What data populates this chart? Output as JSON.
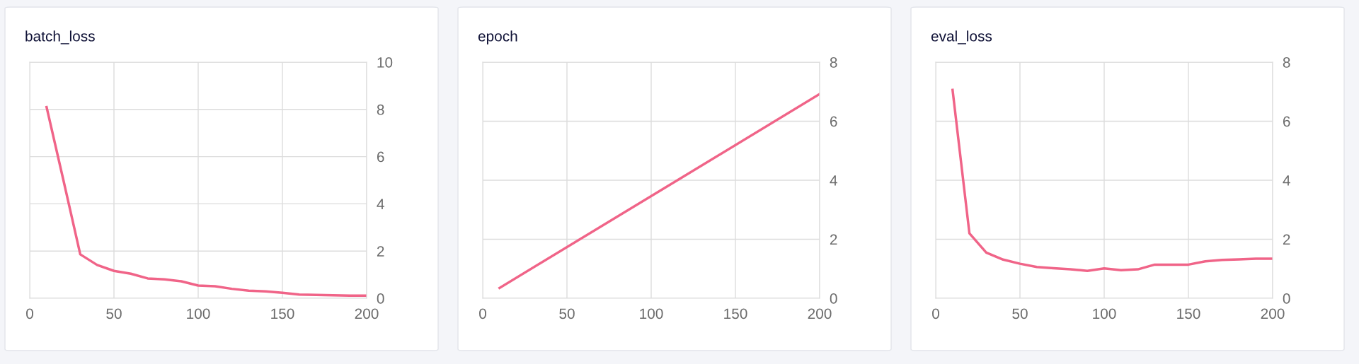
{
  "chart_data": [
    {
      "type": "line",
      "title": "batch_loss",
      "x": [
        10,
        20,
        30,
        40,
        50,
        60,
        70,
        80,
        90,
        100,
        110,
        120,
        130,
        140,
        150,
        160,
        170,
        180,
        190,
        200
      ],
      "series": [
        {
          "color": "#f06488",
          "values": [
            8.1,
            5.0,
            1.86,
            1.41,
            1.16,
            1.04,
            0.84,
            0.8,
            0.72,
            0.54,
            0.51,
            0.4,
            0.32,
            0.29,
            0.23,
            0.16,
            0.14,
            0.13,
            0.11,
            0.11
          ]
        }
      ],
      "xlim": [
        0,
        200
      ],
      "xticks": [
        0,
        50,
        100,
        150,
        200
      ],
      "ylim": [
        0,
        10
      ],
      "yticks": [
        0,
        2,
        4,
        6,
        8,
        10
      ],
      "grid": true,
      "legend": false,
      "marker": "none",
      "line_style": "solid"
    },
    {
      "type": "line",
      "title": "epoch",
      "x": [
        10,
        200
      ],
      "series": [
        {
          "color": "#f06488",
          "values": [
            0.35,
            6.92
          ]
        }
      ],
      "xlim": [
        0,
        200
      ],
      "xticks": [
        0,
        50,
        100,
        150,
        200
      ],
      "ylim": [
        0,
        8
      ],
      "yticks": [
        0,
        2,
        4,
        6,
        8
      ],
      "grid": true,
      "legend": false,
      "marker": "none",
      "line_style": "solid"
    },
    {
      "type": "line",
      "title": "eval_loss",
      "x": [
        10,
        20,
        30,
        40,
        50,
        60,
        70,
        80,
        90,
        100,
        110,
        120,
        130,
        140,
        150,
        160,
        170,
        180,
        190,
        200
      ],
      "series": [
        {
          "color": "#f06488",
          "values": [
            7.06,
            2.2,
            1.55,
            1.31,
            1.17,
            1.06,
            1.02,
            0.98,
            0.93,
            1.01,
            0.95,
            0.98,
            1.14,
            1.14,
            1.14,
            1.25,
            1.3,
            1.32,
            1.34,
            1.34
          ]
        }
      ],
      "xlim": [
        0,
        200
      ],
      "xticks": [
        0,
        50,
        100,
        150,
        200
      ],
      "ylim": [
        0,
        8
      ],
      "yticks": [
        0,
        2,
        4,
        6,
        8
      ],
      "grid": true,
      "legend": false,
      "marker": "none",
      "line_style": "solid"
    }
  ]
}
